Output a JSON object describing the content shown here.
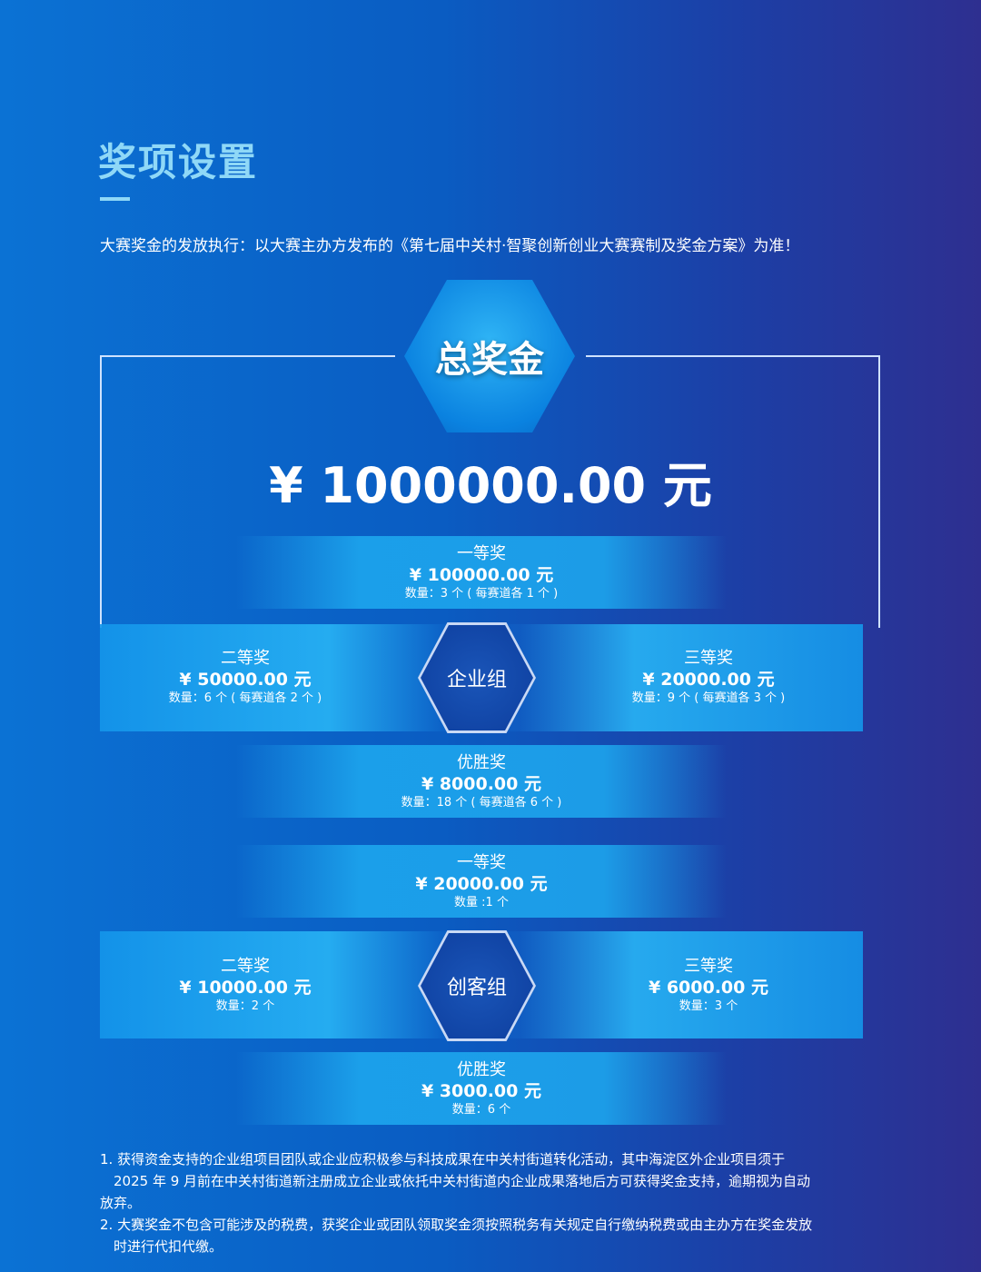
{
  "title": "奖项设置",
  "intro": "大赛奖金的发放执行：以大赛主办方发布的《第七届中关村·智聚创新创业大赛赛制及奖金方案》为准！",
  "total": {
    "label": "总奖金",
    "amount": "¥ 1000000.00 元"
  },
  "enterprise": {
    "group": "企业组",
    "first": {
      "name": "一等奖",
      "amount": "¥ 100000.00 元",
      "count": "数量：3 个 ( 每赛道各 1 个 )"
    },
    "second": {
      "name": "二等奖",
      "amount": "¥ 50000.00 元",
      "count": "数量：6 个 ( 每赛道各 2 个 )"
    },
    "third": {
      "name": "三等奖",
      "amount": "¥ 20000.00 元",
      "count": "数量：9 个 ( 每赛道各 3 个 )"
    },
    "merit": {
      "name": "优胜奖",
      "amount": "¥ 8000.00 元",
      "count": "数量：18 个 ( 每赛道各 6 个 )"
    }
  },
  "maker": {
    "group": "创客组",
    "first": {
      "name": "一等奖",
      "amount": "¥ 20000.00 元",
      "count": "数量 :1 个"
    },
    "second": {
      "name": "二等奖",
      "amount": "¥ 10000.00 元",
      "count": "数量：2 个"
    },
    "third": {
      "name": "三等奖",
      "amount": "¥ 6000.00 元",
      "count": "数量：3 个"
    },
    "merit": {
      "name": "优胜奖",
      "amount": "¥ 3000.00 元",
      "count": "数量：6 个"
    }
  },
  "notes": [
    {
      "line1": "1. 获得资金支持的企业组项目团队或企业应积极参与科技成果在中关村街道转化活动，其中海淀区外企业项目须于",
      "line2": "2025 年 9 月前在中关村街道新注册成立企业或依托中关村街道内企业成果落地后方可获得奖金支持，逾期视为自动",
      "line3": "放弃。"
    },
    {
      "line1": "2. 大赛奖金不包含可能涉及的税费，获奖企业或团队领取奖金须按照税务有关规定自行缴纳税费或由主办方在奖金发放",
      "line2": "时进行代扣代缴。"
    }
  ]
}
